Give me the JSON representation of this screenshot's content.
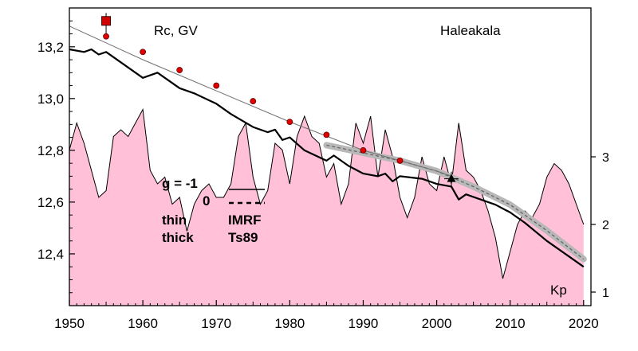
{
  "chart_data": {
    "type": "line",
    "title": "",
    "ylabel": "Rc, GV",
    "station": "Haleakala",
    "xlim": [
      1950,
      2021
    ],
    "ylim": [
      12.2,
      13.35
    ],
    "x_ticks": [
      1950,
      1960,
      1970,
      1980,
      1990,
      2000,
      2010,
      2020
    ],
    "x_tick_labels": [
      "1950",
      "1960",
      "1970",
      "1980",
      "1990",
      "2000",
      "2010",
      "2020"
    ],
    "y_ticks": [
      12.4,
      12.6,
      12.8,
      13.0,
      13.2
    ],
    "y_tick_labels": [
      "12,4",
      "12,6",
      "12,8",
      "13,0",
      "13,2"
    ],
    "kp_axis": {
      "label": "Kp",
      "ticks": [
        1,
        2,
        3
      ],
      "tick_labels": [
        "1",
        "2",
        "3"
      ],
      "range": [
        0.8,
        5.2
      ]
    },
    "legend": {
      "g_minus1_label": "g  = -1",
      "g_zero_label": "0",
      "thin_label": "thin",
      "thick_label": "thick",
      "imrf_label": "IMRF",
      "ts89_label": "Ts89"
    },
    "series": [
      {
        "name": "IMRF g=0",
        "style": "thin gray",
        "x": [
          1950,
          1960,
          1970,
          1980,
          1990,
          2000,
          2002
        ],
        "values": [
          13.28,
          13.15,
          13.03,
          12.91,
          12.8,
          12.72,
          12.7
        ]
      },
      {
        "name": "Ts89 g=0",
        "style": "thick gray",
        "x": [
          1985,
          1990,
          1995,
          2000,
          2005,
          2010,
          2015,
          2020
        ],
        "values": [
          12.82,
          12.79,
          12.76,
          12.72,
          12.66,
          12.59,
          12.49,
          12.38
        ]
      },
      {
        "name": "Ts89 g=-1",
        "style": "thick black",
        "x": [
          1950,
          1952,
          1953,
          1954,
          1955,
          1956,
          1957,
          1958,
          1960,
          1962,
          1965,
          1967,
          1970,
          1972,
          1975,
          1977,
          1978,
          1979,
          1980,
          1982,
          1985,
          1986,
          1987,
          1988,
          1990,
          1992,
          1993,
          1994,
          1995,
          1998,
          2000,
          2002,
          2003,
          2004,
          2005,
          2008,
          2010,
          2012,
          2015,
          2018,
          2020
        ],
        "values": [
          13.19,
          13.18,
          13.19,
          13.17,
          13.18,
          13.16,
          13.14,
          13.12,
          13.08,
          13.1,
          13.04,
          13.02,
          12.98,
          12.94,
          12.89,
          12.87,
          12.88,
          12.84,
          12.85,
          12.8,
          12.76,
          12.78,
          12.76,
          12.74,
          12.71,
          12.7,
          12.71,
          12.68,
          12.7,
          12.69,
          12.67,
          12.66,
          12.61,
          12.63,
          12.62,
          12.59,
          12.56,
          12.52,
          12.45,
          12.39,
          12.35
        ]
      },
      {
        "name": "Kp",
        "style": "pink filled area",
        "x": [
          1950,
          1951,
          1952,
          1953,
          1954,
          1955,
          1956,
          1957,
          1958,
          1959,
          1960,
          1961,
          1962,
          1963,
          1964,
          1965,
          1966,
          1967,
          1968,
          1969,
          1970,
          1971,
          1972,
          1973,
          1974,
          1975,
          1976,
          1977,
          1978,
          1979,
          1980,
          1981,
          1982,
          1983,
          1984,
          1985,
          1986,
          1987,
          1988,
          1989,
          1990,
          1991,
          1992,
          1993,
          1994,
          1995,
          1996,
          1997,
          1998,
          1999,
          2000,
          2001,
          2002,
          2003,
          2004,
          2005,
          2006,
          2007,
          2008,
          2009,
          2010,
          2011,
          2012,
          2013,
          2014,
          2015,
          2016,
          2017,
          2018,
          2019,
          2020
        ],
        "values": [
          3.1,
          3.5,
          3.2,
          2.8,
          2.4,
          2.5,
          3.3,
          3.4,
          3.3,
          3.5,
          3.7,
          2.8,
          2.6,
          2.7,
          2.3,
          2.4,
          1.9,
          2.3,
          2.5,
          2.6,
          2.4,
          2.4,
          2.6,
          3.3,
          3.5,
          2.7,
          2.3,
          2.5,
          3.2,
          3.1,
          2.6,
          3.3,
          3.6,
          3.3,
          3.2,
          2.7,
          2.9,
          2.3,
          2.6,
          3.5,
          3.2,
          3.6,
          2.7,
          3.4,
          3.0,
          2.4,
          2.1,
          2.4,
          3.0,
          2.6,
          2.5,
          3.0,
          2.6,
          3.5,
          2.8,
          2.7,
          2.5,
          2.2,
          1.8,
          1.2,
          1.6,
          2.0,
          2.2,
          2.1,
          2.3,
          2.7,
          2.9,
          2.8,
          2.6,
          2.3,
          2.0
        ]
      },
      {
        "name": "Observed",
        "style": "red circles",
        "x": [
          1955,
          1960,
          1965,
          1970,
          1975,
          1980,
          1985,
          1990,
          1995
        ],
        "values": [
          13.24,
          13.18,
          13.11,
          13.05,
          12.99,
          12.91,
          12.86,
          12.8,
          12.76
        ]
      }
    ],
    "annotations": [
      {
        "type": "red square",
        "x": 1955,
        "y": 13.3
      },
      {
        "type": "black triangle",
        "x": 2002,
        "y": 12.69
      }
    ]
  }
}
